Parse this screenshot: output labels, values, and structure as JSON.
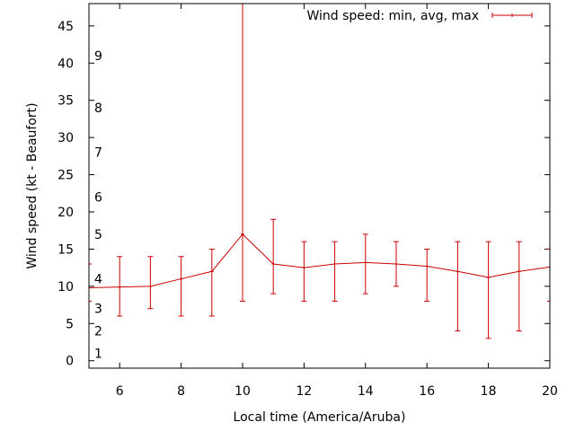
{
  "chart_data": {
    "type": "line",
    "title": "",
    "xlabel": "Local time (America/Aruba)",
    "ylabel": "Wind speed (kt - Beaufort)",
    "xlim": [
      5,
      20
    ],
    "ylim": [
      -1,
      48
    ],
    "xticks": [
      6,
      8,
      10,
      12,
      14,
      16,
      18,
      20
    ],
    "yticks": [
      0,
      5,
      10,
      15,
      20,
      25,
      30,
      35,
      40,
      45
    ],
    "grid": false,
    "legend_position": "top-right",
    "series": [
      {
        "name": "Wind speed: min, avg, max",
        "color": "#cc0000",
        "error_bars": true,
        "x": [
          5,
          6,
          7,
          8,
          9,
          10,
          11,
          12,
          13,
          14,
          15,
          16,
          17,
          18,
          19,
          20
        ],
        "avg": [
          9.8,
          9.9,
          10.0,
          11.0,
          12.0,
          17.0,
          13.0,
          12.5,
          13.0,
          13.2,
          13.0,
          12.7,
          12.0,
          11.2,
          12.0,
          12.6
        ],
        "min": [
          8.0,
          6.0,
          7.0,
          6.0,
          6.0,
          8.0,
          9.0,
          8.0,
          8.0,
          9.0,
          10.0,
          8.0,
          4.0,
          3.0,
          4.0,
          8.0
        ],
        "max": [
          13.0,
          14.0,
          14.0,
          14.0,
          15.0,
          48.0,
          19.0,
          16.0,
          16.0,
          17.0,
          16.0,
          15.0,
          16.0,
          16.0,
          16.0,
          15.0
        ]
      }
    ],
    "annotations": [
      {
        "text": "1",
        "y": 1
      },
      {
        "text": "2",
        "y": 4
      },
      {
        "text": "3",
        "y": 7
      },
      {
        "text": "4",
        "y": 11
      },
      {
        "text": "5",
        "y": 17
      },
      {
        "text": "6",
        "y": 22
      },
      {
        "text": "7",
        "y": 28
      },
      {
        "text": "8",
        "y": 34
      },
      {
        "text": "9",
        "y": 41
      }
    ]
  }
}
